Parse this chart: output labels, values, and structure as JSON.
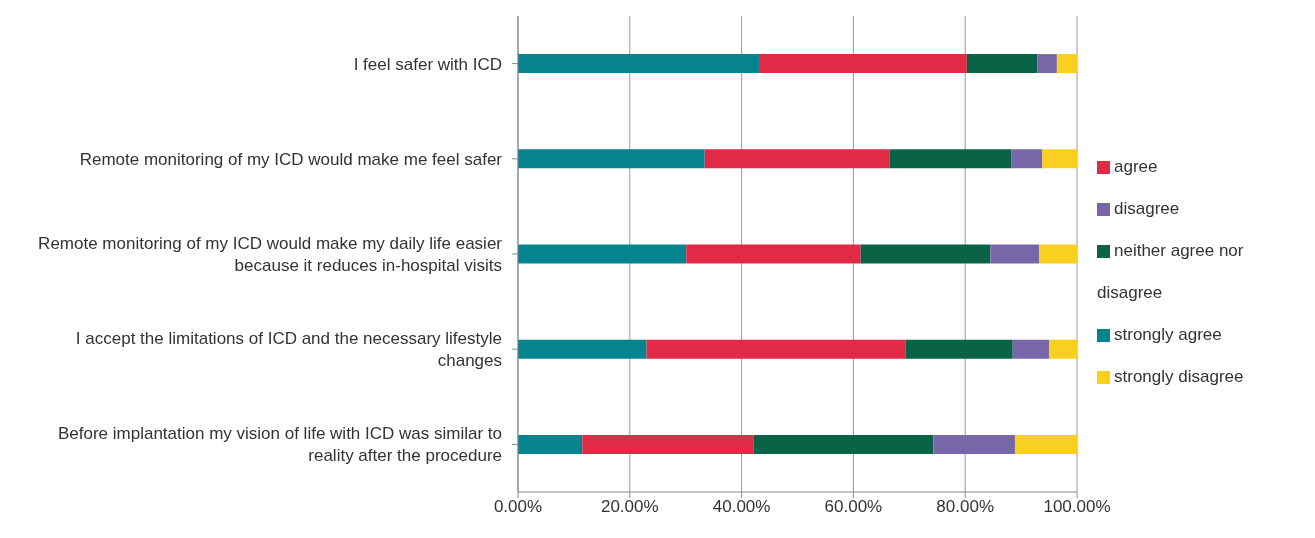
{
  "chart_data": {
    "type": "bar",
    "orientation": "horizontal",
    "stacked": true,
    "categories": [
      "I feel safer with ICD",
      "Remote monitoring of my ICD would make me feel safer",
      "Remote monitoring of my ICD would make my daily life easier because it reduces in-hospital visits",
      "I accept the limitations of ICD and the necessary lifestyle changes",
      "Before implantation my vision of life with ICD was similar to reality after the procedure"
    ],
    "series": [
      {
        "name": "strongly agree",
        "color": "#05838f",
        "values": [
          43.1,
          33.4,
          30.1,
          23.0,
          11.5
        ]
      },
      {
        "name": "agree",
        "color": "#e02a46",
        "values": [
          37.2,
          33.1,
          31.2,
          46.3,
          30.6
        ]
      },
      {
        "name": "neither agree nor disagree",
        "color": "#0a6347",
        "values": [
          12.6,
          21.8,
          23.2,
          19.2,
          32.2
        ]
      },
      {
        "name": "disagree",
        "color": "#7767a8",
        "values": [
          3.5,
          5.5,
          8.7,
          6.5,
          14.6
        ]
      },
      {
        "name": "strongly disagree",
        "color": "#fad020",
        "values": [
          3.6,
          6.2,
          6.8,
          5.0,
          11.1
        ]
      }
    ],
    "xlim": [
      0,
      100
    ],
    "xticks": [
      {
        "value": 0,
        "label": "0.00%"
      },
      {
        "value": 20,
        "label": "20.00%"
      },
      {
        "value": 40,
        "label": "40.00%"
      },
      {
        "value": 60,
        "label": "60.00%"
      },
      {
        "value": 80,
        "label": "80.00%"
      },
      {
        "value": 100,
        "label": "100.00%"
      }
    ],
    "grid": "x",
    "legend": "right"
  }
}
